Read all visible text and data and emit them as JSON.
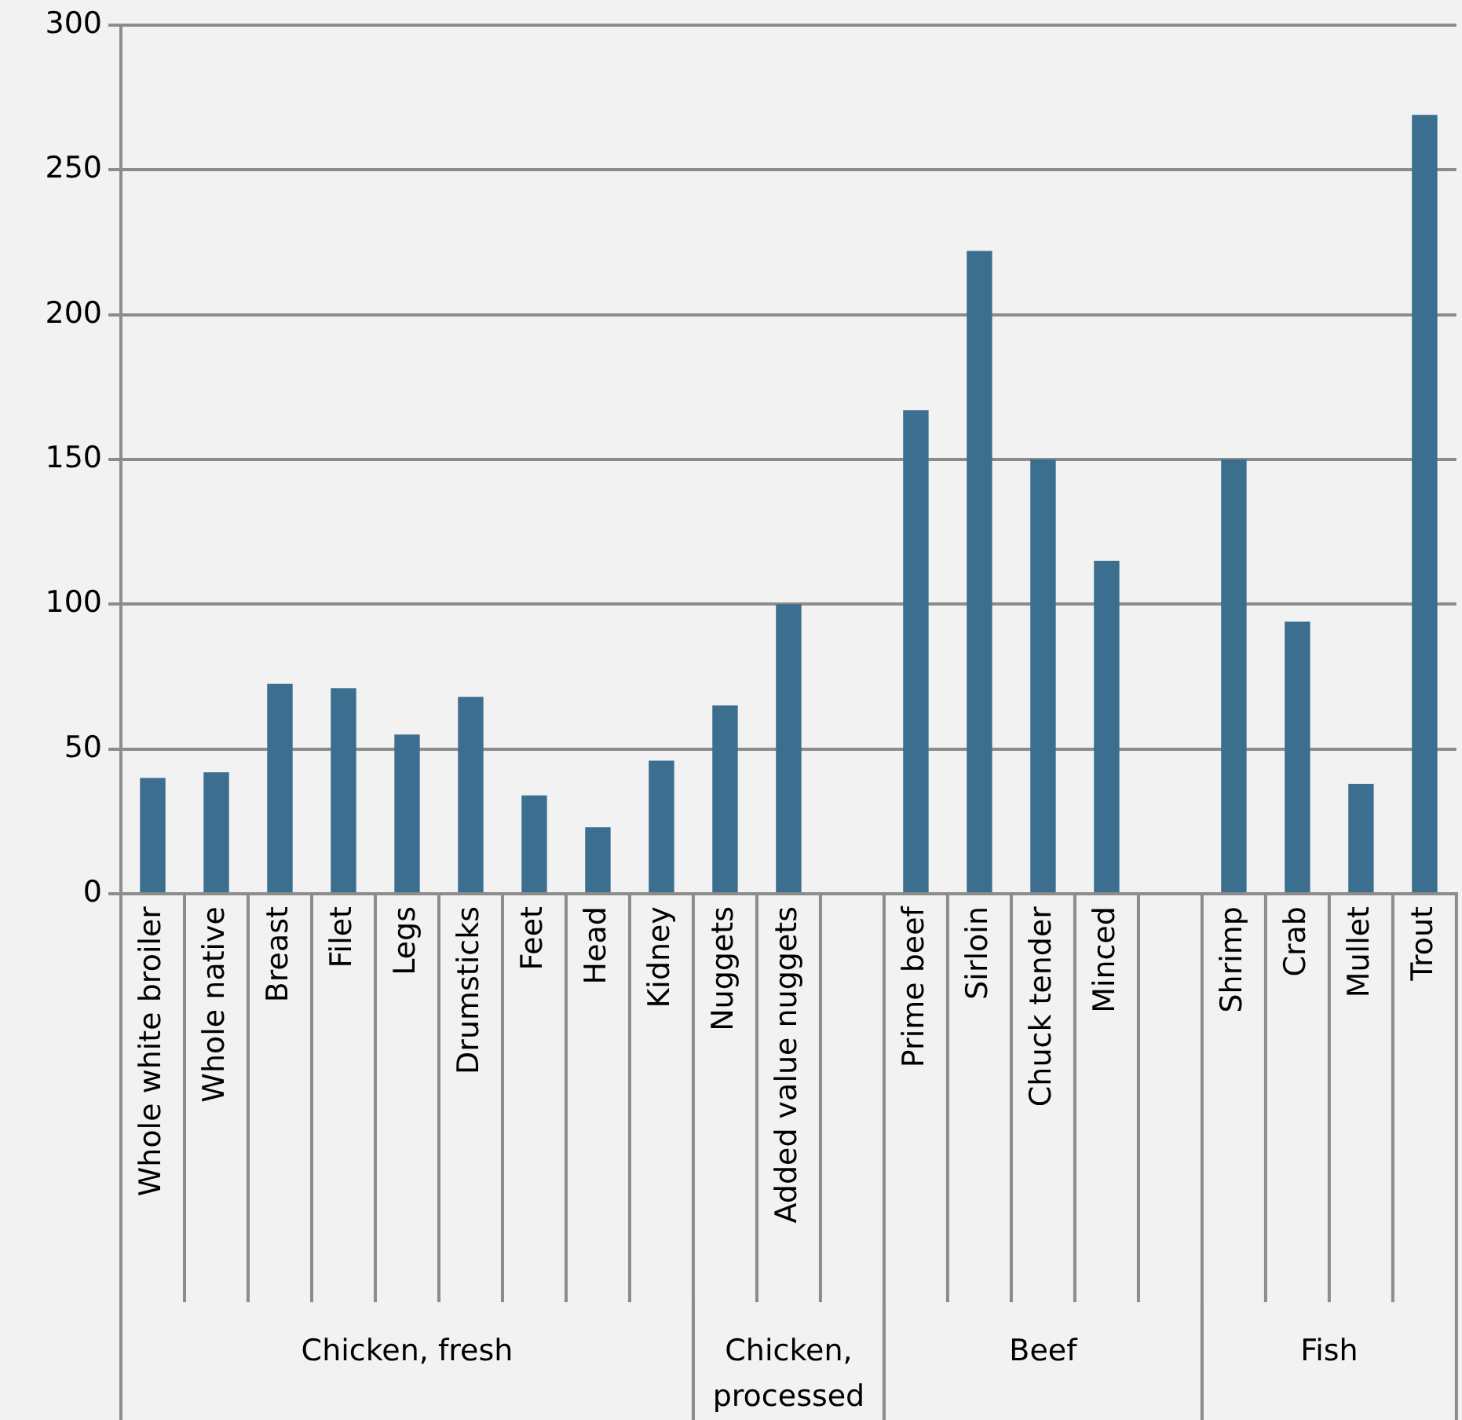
{
  "chart_data": {
    "type": "bar",
    "categories": [
      "Whole white broiler",
      "Whole native",
      "Breast",
      "Filet",
      "Legs",
      "Drumsticks",
      "Feet",
      "Head",
      "Kidney",
      "Nuggets",
      "Added value nuggets",
      null,
      "Prime beef",
      "Sirloin",
      "Chuck tender",
      "Minced",
      null,
      "Shrimp",
      "Crab",
      "Mullet",
      "Trout"
    ],
    "values": [
      40,
      42,
      72.5,
      71,
      55,
      68,
      34,
      23,
      46,
      65,
      100,
      null,
      167,
      222,
      150,
      115,
      null,
      150,
      94,
      38,
      269
    ],
    "color": "#3b6e8f",
    "ylim": [
      0,
      300
    ],
    "yticks": [
      0,
      50,
      100,
      150,
      200,
      250,
      300
    ],
    "grid": "y",
    "legend": false,
    "annotations": [
      "Chicken, fresh",
      "Chicken, processed",
      "Beef",
      "Fish"
    ]
  }
}
